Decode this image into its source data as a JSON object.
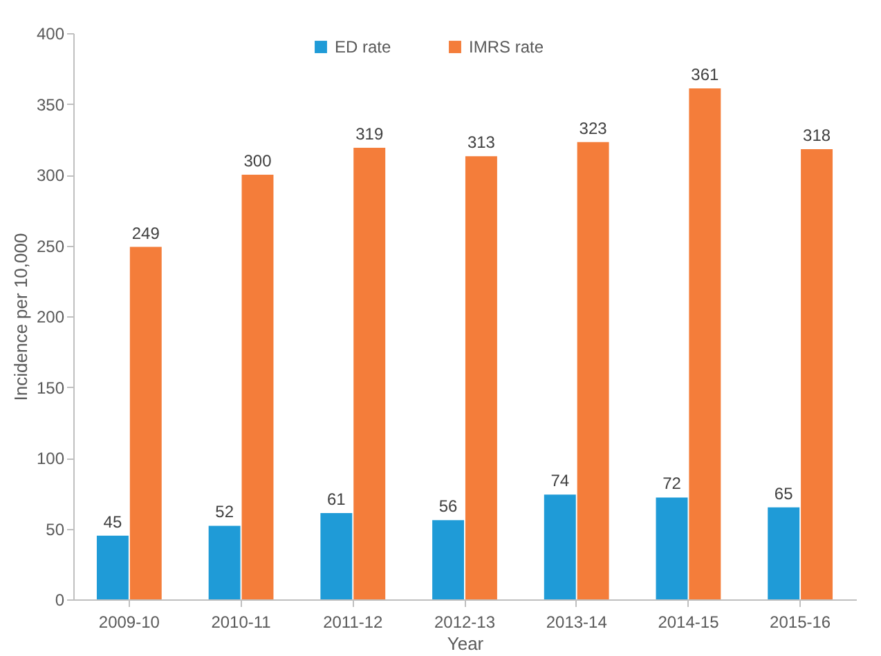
{
  "chart_data": {
    "type": "bar",
    "xlabel": "Year",
    "ylabel": "Incidence per 10,000",
    "categories": [
      "2009-10",
      "2010-11",
      "2011-12",
      "2012-13",
      "2013-14",
      "2014-15",
      "2015-16"
    ],
    "series": [
      {
        "name": "ED rate",
        "color": "#1f9bd7",
        "values": [
          45,
          52,
          61,
          56,
          74,
          72,
          65
        ]
      },
      {
        "name": "IMRS rate",
        "color": "#f47d3a",
        "values": [
          249,
          300,
          319,
          313,
          323,
          361,
          318
        ]
      }
    ],
    "ylim": [
      0,
      400
    ],
    "yticks": [
      0,
      50,
      100,
      150,
      200,
      250,
      300,
      350,
      400
    ],
    "grid": false,
    "legend": "top",
    "data_labels": true
  }
}
